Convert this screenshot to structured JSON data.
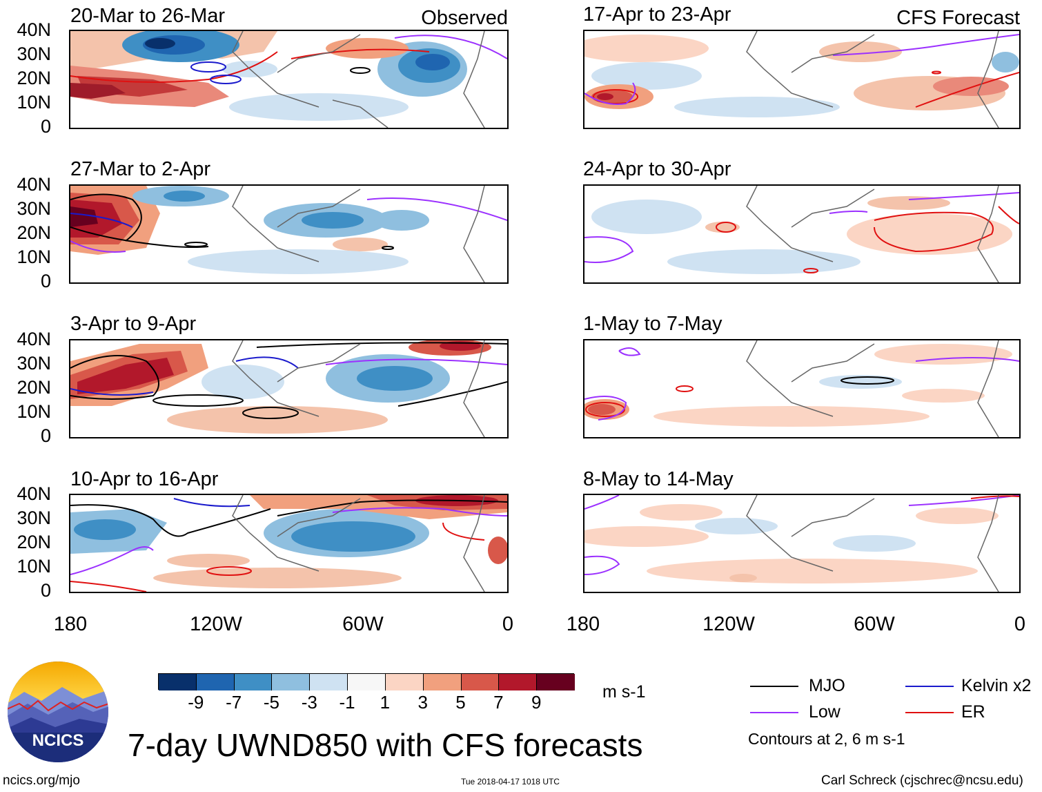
{
  "left_tag": "Observed",
  "right_tag": "CFS Forecast",
  "panels": [
    {
      "title": "20-Mar to 26-Mar"
    },
    {
      "title": "27-Mar to 2-Apr"
    },
    {
      "title": "3-Apr to 9-Apr"
    },
    {
      "title": "10-Apr to 16-Apr"
    },
    {
      "title": "17-Apr to 23-Apr"
    },
    {
      "title": "24-Apr to 30-Apr"
    },
    {
      "title": "1-May to 7-May"
    },
    {
      "title": "8-May to 14-May"
    }
  ],
  "lat_labels": [
    "40N",
    "30N",
    "20N",
    "10N",
    "0"
  ],
  "lon_labels": [
    "180",
    "120W",
    "60W",
    "0"
  ],
  "colorbar": {
    "colors": [
      "#08306b",
      "#1f65b0",
      "#3f8fc5",
      "#8fbfdf",
      "#cfe2f2",
      "#f7f7f7",
      "#fbd5c4",
      "#f1a07e",
      "#d8584a",
      "#b2182b",
      "#67001f"
    ],
    "ticks": [
      "-9",
      "-7",
      "-5",
      "-3",
      "-1",
      "1",
      "3",
      "5",
      "7",
      "9"
    ],
    "units": "m s-1"
  },
  "legend": {
    "items": [
      {
        "label": "MJO",
        "color": "#000000"
      },
      {
        "label": "Kelvin x2",
        "color": "#1a1acc"
      },
      {
        "label": "Low",
        "color": "#9b30ff"
      },
      {
        "label": "ER",
        "color": "#e01010"
      }
    ],
    "note": "Contours at 2, 6 m s-1"
  },
  "logo_text": "NCICS",
  "main_title": "7-day UWND850 with CFS forecasts",
  "footer": {
    "left": "ncics.org/mjo",
    "center": "Tue 2018-04-17 1018 UTC",
    "right": "Carl Schreck (cjschrec@ncsu.edu)"
  }
}
